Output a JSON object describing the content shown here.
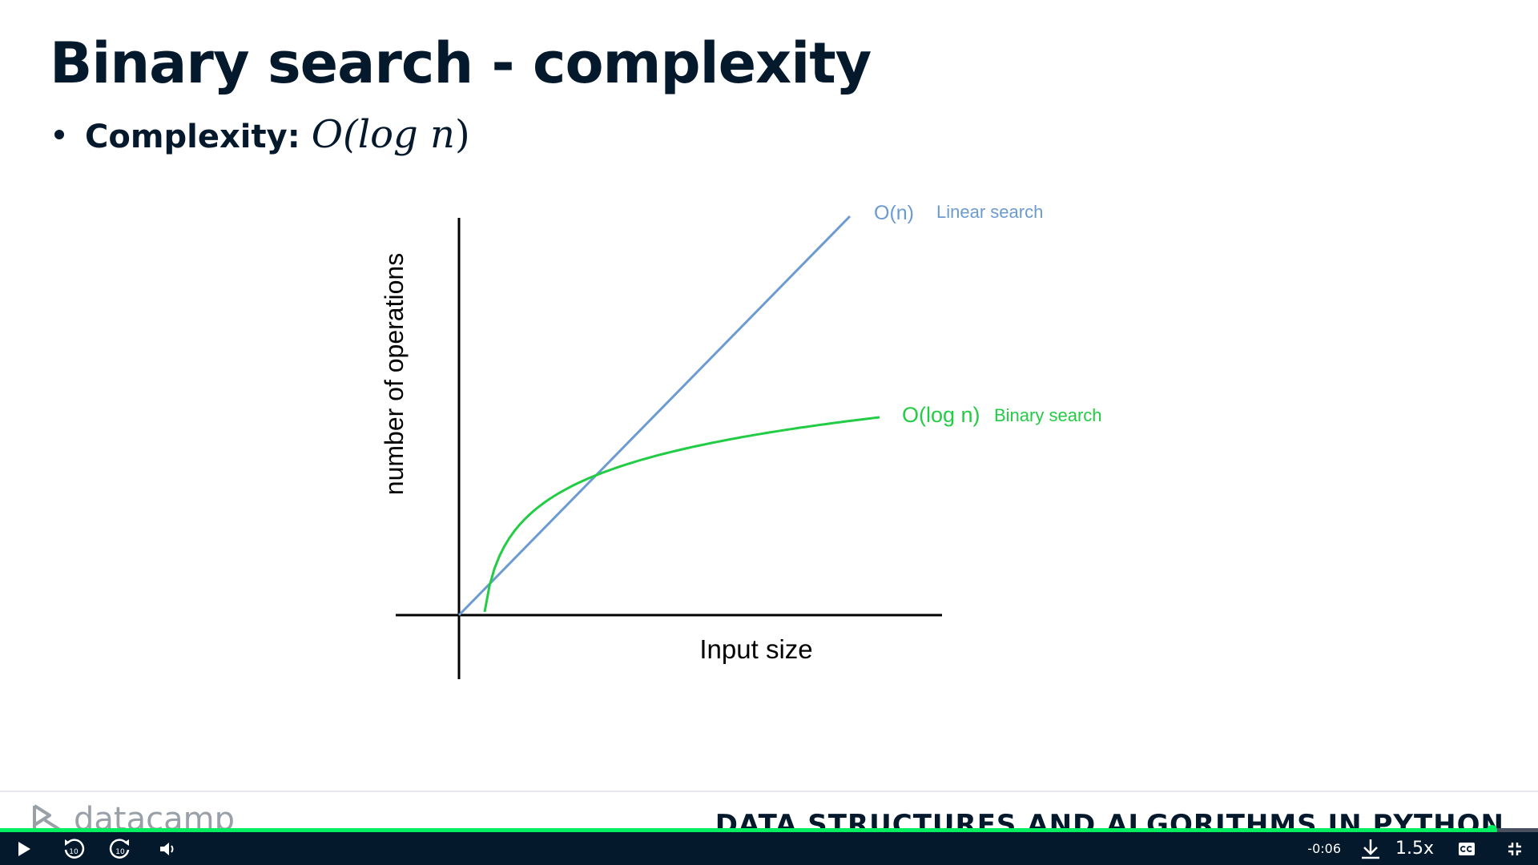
{
  "slide": {
    "title": "Binary search - complexity",
    "bullet_label": "Complexity:",
    "bullet_math_prefix": "O(log ",
    "bullet_math_var": "n",
    "bullet_math_suffix": ")"
  },
  "chart_data": {
    "type": "line",
    "xlabel": "Input size",
    "ylabel": "number of operations",
    "series": [
      {
        "name": "Linear search",
        "label": "O(n)",
        "color": "#6b9bd1",
        "kind": "linear"
      },
      {
        "name": "Binary search",
        "label": "O(log n)",
        "color": "#22cc44",
        "kind": "log"
      }
    ]
  },
  "footer": {
    "logo_text": "datacamp",
    "course_title": "DATA STRUCTURES AND ALGORITHMS IN PYTHON"
  },
  "player": {
    "time_remaining": "-0:06",
    "speed": "1.5x",
    "progress": 0.97,
    "skip_seconds": "10",
    "icons": [
      "play-icon",
      "rewind-10-icon",
      "forward-10-icon",
      "volume-icon",
      "download-icon",
      "captions-icon",
      "exit-fullscreen-icon"
    ],
    "accent_color": "#03ef62"
  }
}
